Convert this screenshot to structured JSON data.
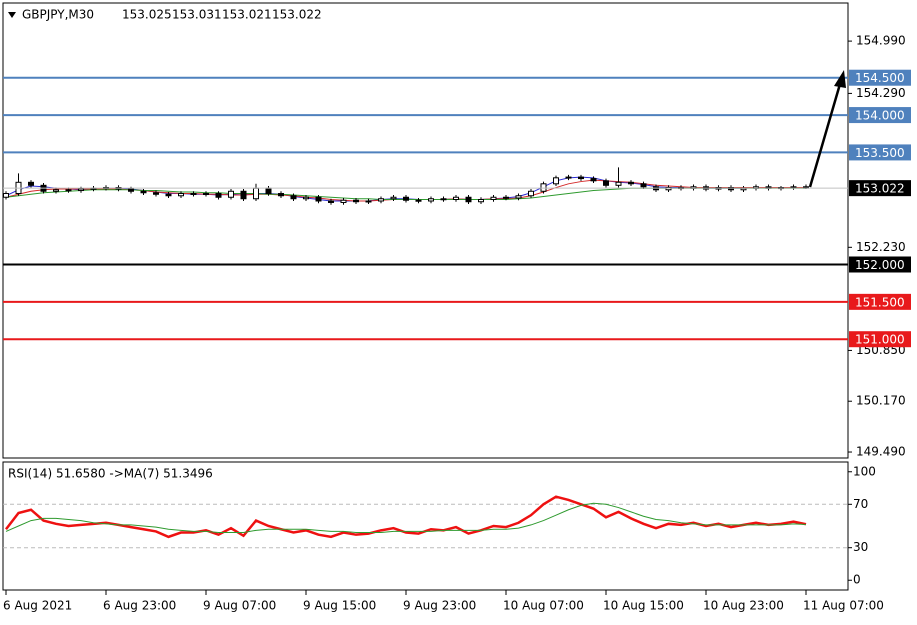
{
  "chart_data": [
    {
      "type": "candlestick",
      "symbol": "GBPJPY,M30",
      "quote": {
        "open": 153.025,
        "high": 153.031,
        "low": 153.021,
        "close": 153.022
      },
      "categories": [
        "6 Aug 2021",
        null,
        null,
        null,
        null,
        null,
        null,
        null,
        "6 Aug 23:00",
        null,
        null,
        null,
        null,
        null,
        null,
        null,
        "9 Aug 07:00",
        null,
        null,
        null,
        null,
        null,
        null,
        null,
        "9 Aug 15:00",
        null,
        null,
        null,
        null,
        null,
        null,
        null,
        "9 Aug 23:00",
        null,
        null,
        null,
        null,
        null,
        null,
        null,
        "10 Aug 07:00",
        null,
        null,
        null,
        null,
        null,
        null,
        null,
        "10 Aug 15:00",
        null,
        null,
        null,
        null,
        null,
        null,
        null,
        "10 Aug 23:00",
        null,
        null,
        null,
        null,
        null,
        null,
        null,
        "11 Aug 07:00"
      ],
      "open": [
        152.9,
        152.95,
        153.1,
        153.06,
        152.98,
        153.0,
        152.99,
        153.01,
        153.02,
        153.03,
        153.01,
        152.98,
        152.96,
        152.94,
        152.92,
        152.95,
        152.94,
        152.95,
        152.9,
        152.98,
        152.88,
        153.02,
        152.95,
        152.92,
        152.88,
        152.9,
        152.85,
        152.83,
        152.86,
        152.84,
        152.85,
        152.88,
        152.9,
        152.86,
        152.85,
        152.88,
        152.87,
        152.9,
        152.84,
        152.87,
        152.9,
        152.89,
        152.92,
        152.98,
        153.08,
        153.16,
        153.17,
        153.15,
        153.12,
        153.06,
        153.1,
        153.08,
        153.04,
        153.0,
        153.03,
        153.02,
        153.04,
        153.01,
        153.03,
        153.0,
        153.02,
        153.04,
        153.02,
        153.03,
        153.04
      ],
      "high": [
        152.98,
        153.22,
        153.13,
        153.09,
        153.03,
        153.03,
        153.04,
        153.05,
        153.06,
        153.06,
        153.04,
        153.01,
        152.99,
        152.97,
        152.98,
        152.98,
        152.98,
        152.98,
        153.01,
        153.01,
        153.08,
        153.05,
        152.98,
        152.95,
        152.93,
        152.93,
        152.88,
        152.89,
        152.89,
        152.88,
        152.91,
        152.93,
        152.93,
        152.89,
        152.91,
        152.91,
        152.93,
        152.93,
        152.9,
        152.93,
        152.93,
        152.95,
        153.01,
        153.11,
        153.19,
        153.2,
        153.2,
        153.18,
        153.15,
        153.3,
        153.13,
        153.11,
        153.07,
        153.06,
        153.06,
        153.07,
        153.07,
        153.06,
        153.06,
        153.05,
        153.07,
        153.07,
        153.05,
        153.07,
        153.07
      ],
      "low": [
        152.87,
        152.92,
        153.03,
        152.95,
        152.95,
        152.96,
        152.96,
        152.98,
        152.99,
        152.98,
        152.95,
        152.93,
        152.91,
        152.89,
        152.89,
        152.91,
        152.91,
        152.87,
        152.87,
        152.85,
        152.85,
        152.92,
        152.89,
        152.85,
        152.85,
        152.82,
        152.8,
        152.8,
        152.81,
        152.81,
        152.82,
        152.85,
        152.83,
        152.82,
        152.82,
        152.84,
        152.84,
        152.81,
        152.81,
        152.84,
        152.86,
        152.86,
        152.89,
        152.95,
        153.05,
        153.13,
        153.12,
        153.09,
        153.03,
        153.03,
        153.05,
        153.01,
        152.97,
        152.97,
        152.99,
        152.99,
        152.98,
        152.98,
        152.97,
        152.97,
        152.99,
        152.99,
        152.99,
        153.0,
        153.01
      ],
      "close": [
        152.95,
        153.1,
        153.06,
        152.98,
        153.0,
        152.99,
        153.01,
        153.02,
        153.03,
        153.01,
        152.98,
        152.96,
        152.94,
        152.92,
        152.95,
        152.94,
        152.95,
        152.9,
        152.98,
        152.88,
        153.02,
        152.95,
        152.92,
        152.88,
        152.9,
        152.85,
        152.83,
        152.86,
        152.84,
        152.85,
        152.88,
        152.9,
        152.86,
        152.85,
        152.88,
        152.87,
        152.9,
        152.84,
        152.87,
        152.9,
        152.89,
        152.92,
        152.98,
        153.08,
        153.16,
        153.17,
        153.15,
        153.12,
        153.06,
        153.1,
        153.08,
        153.04,
        153.0,
        153.03,
        153.02,
        153.04,
        153.01,
        153.03,
        153.0,
        153.02,
        153.04,
        153.02,
        153.03,
        153.04,
        153.022
      ],
      "candle_color": "#000000",
      "series": [
        {
          "color": "#2b2bd4",
          "values": [
            152.92,
            153.0,
            153.05,
            153.04,
            153.02,
            153.01,
            153.0,
            153.01,
            153.02,
            153.02,
            153.01,
            152.99,
            152.97,
            152.95,
            152.95,
            152.94,
            152.94,
            152.93,
            152.94,
            152.93,
            152.95,
            152.95,
            152.94,
            152.91,
            152.89,
            152.87,
            152.85,
            152.85,
            152.85,
            152.85,
            152.87,
            152.88,
            152.88,
            152.87,
            152.87,
            152.87,
            152.88,
            152.87,
            152.87,
            152.88,
            152.89,
            152.91,
            152.96,
            153.04,
            153.12,
            153.16,
            153.17,
            153.16,
            153.12,
            153.1,
            153.09,
            153.07,
            153.04,
            153.03,
            153.03,
            153.03,
            153.02,
            153.02,
            153.02,
            153.02,
            153.03,
            153.03,
            153.03,
            153.03,
            153.03
          ]
        },
        {
          "color": "#d42b2b",
          "values": [
            152.9,
            152.94,
            152.98,
            153.0,
            153.01,
            153.01,
            153.01,
            153.01,
            153.01,
            153.01,
            153.0,
            152.99,
            152.97,
            152.96,
            152.95,
            152.95,
            152.94,
            152.94,
            152.93,
            152.93,
            152.94,
            152.94,
            152.93,
            152.92,
            152.9,
            152.89,
            152.87,
            152.86,
            152.85,
            152.85,
            152.86,
            152.87,
            152.87,
            152.87,
            152.87,
            152.87,
            152.88,
            152.87,
            152.87,
            152.88,
            152.88,
            152.89,
            152.92,
            152.97,
            153.03,
            153.08,
            153.11,
            153.13,
            153.12,
            153.11,
            153.1,
            153.08,
            153.06,
            153.05,
            153.04,
            153.03,
            153.03,
            153.03,
            153.03,
            153.03,
            153.03,
            153.03,
            153.03,
            153.03,
            153.03
          ]
        },
        {
          "color": "#2e9a2e",
          "values": [
            152.9,
            152.92,
            152.94,
            152.96,
            152.97,
            152.98,
            152.99,
            153.0,
            153.0,
            153.0,
            153.0,
            152.99,
            152.99,
            152.98,
            152.97,
            152.97,
            152.96,
            152.96,
            152.95,
            152.95,
            152.95,
            152.94,
            152.94,
            152.93,
            152.92,
            152.91,
            152.9,
            152.89,
            152.88,
            152.88,
            152.87,
            152.87,
            152.87,
            152.87,
            152.87,
            152.87,
            152.87,
            152.87,
            152.87,
            152.87,
            152.87,
            152.88,
            152.89,
            152.91,
            152.93,
            152.95,
            152.97,
            152.99,
            153.0,
            153.01,
            153.02,
            153.02,
            153.02,
            153.02,
            153.02,
            153.02,
            153.02,
            153.02,
            153.02,
            153.02,
            153.02,
            153.02,
            153.02,
            153.02,
            153.02
          ]
        }
      ],
      "ylim": [
        149.41,
        155.5
      ],
      "yticks": [
        {
          "value": 154.99,
          "label": "154.990"
        },
        {
          "value": 154.29,
          "label": "154.290"
        },
        {
          "value": 152.23,
          "label": "152.230"
        },
        {
          "value": 150.85,
          "label": "150.850"
        },
        {
          "value": 150.17,
          "label": "150.170"
        },
        {
          "value": 149.49,
          "label": "149.490"
        }
      ],
      "levels": [
        {
          "value": 154.5,
          "label": "154.500",
          "color": "#4f81bd"
        },
        {
          "value": 154.0,
          "label": "154.000",
          "color": "#4f81bd"
        },
        {
          "value": 153.5,
          "label": "153.500",
          "color": "#4f81bd"
        },
        {
          "value": 152.0,
          "label": "152.000",
          "color": "#000000"
        },
        {
          "value": 151.5,
          "label": "151.500",
          "color": "#e8191b"
        },
        {
          "value": 151.0,
          "label": "151.000",
          "color": "#e8191b"
        }
      ],
      "current_price": {
        "value": 153.022,
        "label": "153.022",
        "color": "#c0c0c0"
      }
    },
    {
      "type": "line",
      "title": "RSI(14) 51.6580  ->MA(7) 51.3496",
      "series": [
        {
          "color": "#ee1111",
          "values": [
            47,
            62,
            65,
            55,
            52,
            50,
            51,
            52,
            53,
            51,
            49,
            47,
            45,
            40,
            44,
            44,
            46,
            42,
            48,
            41,
            55,
            50,
            47,
            44,
            46,
            42,
            40,
            44,
            42,
            43,
            46,
            48,
            44,
            43,
            47,
            46,
            49,
            43,
            46,
            50,
            49,
            53,
            60,
            70,
            77,
            74,
            70,
            66,
            58,
            63,
            57,
            52,
            48,
            52,
            51,
            53,
            50,
            52,
            49,
            51,
            53,
            51,
            52,
            54,
            51.658
          ]
        },
        {
          "color": "#2e9a2e",
          "values": [
            45,
            50,
            55,
            57,
            57,
            56,
            55,
            53,
            52,
            51,
            51,
            50,
            49,
            47,
            46,
            45,
            45,
            44,
            44,
            44,
            46,
            47,
            47,
            47,
            47,
            46,
            45,
            45,
            44,
            44,
            44,
            45,
            45,
            45,
            45,
            46,
            46,
            46,
            46,
            47,
            47,
            48,
            51,
            55,
            60,
            65,
            69,
            71,
            70,
            67,
            63,
            59,
            56,
            55,
            53,
            52,
            51,
            51,
            51,
            51,
            51,
            51,
            51,
            52,
            51.3496
          ]
        }
      ],
      "ylim": [
        -9,
        109
      ],
      "yticks": [
        0,
        30,
        70,
        100
      ],
      "levels": [
        30,
        70
      ]
    }
  ]
}
